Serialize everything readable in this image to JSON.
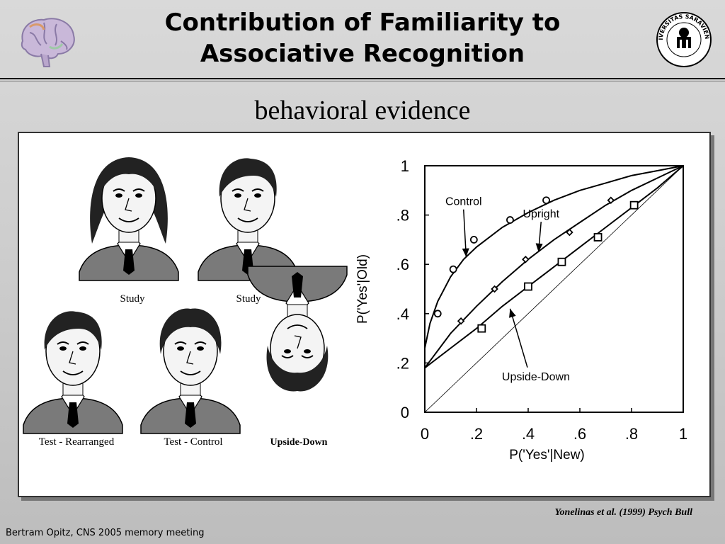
{
  "slide": {
    "title_line1": "Contribution of Familiarity to",
    "title_line2": "Associative Recognition",
    "subtitle": "behavioral evidence",
    "citation": "Yonelinas et al. (1999) Psych Bull",
    "footer": "Bertram Opitz, CNS 2005 memory meeting",
    "logo_text": "UNIVERSITAS SARAVIENSIS"
  },
  "faces": {
    "study_1": "Study",
    "study_2": "Study",
    "test_rearranged": "Test - Rearranged",
    "test_control": "Test - Control",
    "upside_down": "Upside-Down"
  },
  "colors": {
    "ink": "#000000",
    "shirt_gray": "#7a7a7a",
    "hair": "#222222",
    "skin": "#f4f4f4"
  },
  "chart_data": {
    "type": "line",
    "xlabel": "P('Yes'|New)",
    "ylabel": "P('Yes'|Old)",
    "xlim": [
      0,
      1
    ],
    "ylim": [
      0,
      1
    ],
    "xticks": [
      "0",
      ".2",
      ".4",
      ".6",
      ".8",
      "1"
    ],
    "yticks": [
      "0",
      ".2",
      ".4",
      ".6",
      ".8",
      "1"
    ],
    "series": [
      {
        "name": "Control",
        "marker": "circle",
        "points": [
          [
            0.05,
            0.4
          ],
          [
            0.11,
            0.58
          ],
          [
            0.19,
            0.7
          ],
          [
            0.33,
            0.78
          ],
          [
            0.47,
            0.86
          ]
        ],
        "curve": [
          [
            0,
            0.26
          ],
          [
            0.02,
            0.36
          ],
          [
            0.05,
            0.45
          ],
          [
            0.1,
            0.55
          ],
          [
            0.15,
            0.62
          ],
          [
            0.2,
            0.67
          ],
          [
            0.3,
            0.75
          ],
          [
            0.4,
            0.81
          ],
          [
            0.5,
            0.86
          ],
          [
            0.6,
            0.9
          ],
          [
            0.7,
            0.93
          ],
          [
            0.8,
            0.96
          ],
          [
            0.9,
            0.98
          ],
          [
            1,
            1
          ]
        ]
      },
      {
        "name": "Upright",
        "marker": "diamond",
        "points": [
          [
            0.14,
            0.37
          ],
          [
            0.27,
            0.5
          ],
          [
            0.39,
            0.62
          ],
          [
            0.56,
            0.73
          ],
          [
            0.72,
            0.86
          ]
        ],
        "curve": [
          [
            0,
            0.18
          ],
          [
            0.1,
            0.32
          ],
          [
            0.2,
            0.43
          ],
          [
            0.3,
            0.53
          ],
          [
            0.4,
            0.62
          ],
          [
            0.5,
            0.7
          ],
          [
            0.6,
            0.77
          ],
          [
            0.7,
            0.84
          ],
          [
            0.8,
            0.9
          ],
          [
            0.9,
            0.95
          ],
          [
            1,
            1
          ]
        ]
      },
      {
        "name": "Upside-Down",
        "marker": "square",
        "points": [
          [
            0.22,
            0.34
          ],
          [
            0.4,
            0.51
          ],
          [
            0.53,
            0.61
          ],
          [
            0.67,
            0.71
          ],
          [
            0.81,
            0.84
          ]
        ],
        "curve": [
          [
            0,
            0.18
          ],
          [
            0.1,
            0.26
          ],
          [
            0.2,
            0.34
          ],
          [
            0.3,
            0.43
          ],
          [
            0.4,
            0.51
          ],
          [
            0.5,
            0.59
          ],
          [
            0.6,
            0.67
          ],
          [
            0.7,
            0.75
          ],
          [
            0.8,
            0.83
          ],
          [
            0.9,
            0.91
          ],
          [
            1,
            1
          ]
        ]
      }
    ],
    "annotations": [
      {
        "text": "Control",
        "at": [
          0.15,
          0.84
        ],
        "arrow_to": [
          0.16,
          0.63
        ]
      },
      {
        "text": "Upright",
        "at": [
          0.45,
          0.79
        ],
        "arrow_to": [
          0.44,
          0.65
        ]
      },
      {
        "text": "Upside-Down",
        "at": [
          0.43,
          0.13
        ],
        "arrow_to": [
          0.33,
          0.42
        ]
      }
    ],
    "reference_line": "diagonal"
  }
}
